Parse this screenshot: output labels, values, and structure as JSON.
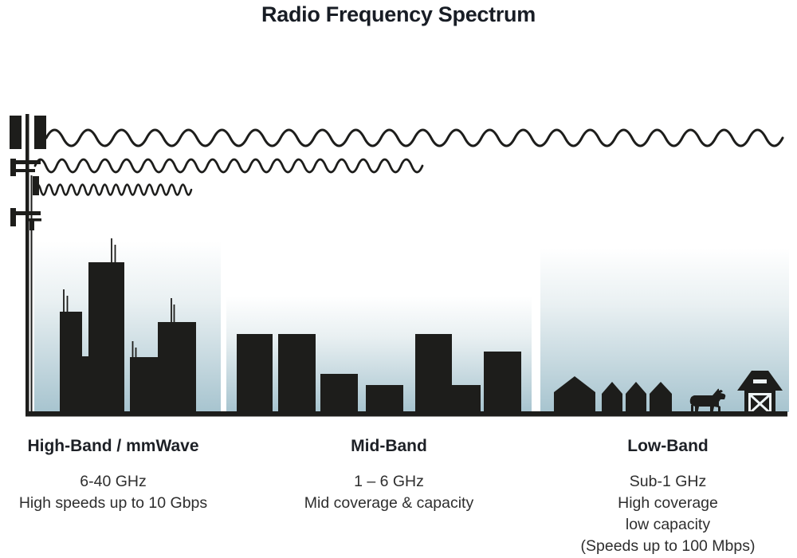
{
  "title": "Radio Frequency Spectrum",
  "colors": {
    "ink": "#1d1d1b",
    "sky_top": "#ffffff",
    "sky_bottom": "#a7c4cf",
    "heading_text": "#1d2026",
    "body_text": "#2e2e2e"
  },
  "tower": {
    "icon": "cell-tower"
  },
  "waves": [
    {
      "icon": "long-wave",
      "meaning": "low frequency / long wavelength"
    },
    {
      "icon": "medium-wave",
      "meaning": "mid frequency / medium wavelength"
    },
    {
      "icon": "short-wave",
      "meaning": "high frequency / short wavelength"
    }
  ],
  "bands": [
    {
      "name": "High-Band / mmWave",
      "lines": [
        "6-40 GHz",
        "High speeds up to 10 Gbps"
      ],
      "scene": "city-skyline"
    },
    {
      "name": "Mid-Band",
      "lines": [
        "1 – 6 GHz",
        "Mid coverage & capacity"
      ],
      "scene": "suburb-buildings"
    },
    {
      "name": "Low-Band",
      "lines": [
        "Sub-1 GHz",
        "High coverage",
        "low capacity",
        "(Speeds up to 100 Mbps)"
      ],
      "scene": "rural-houses-cow-barn"
    }
  ]
}
